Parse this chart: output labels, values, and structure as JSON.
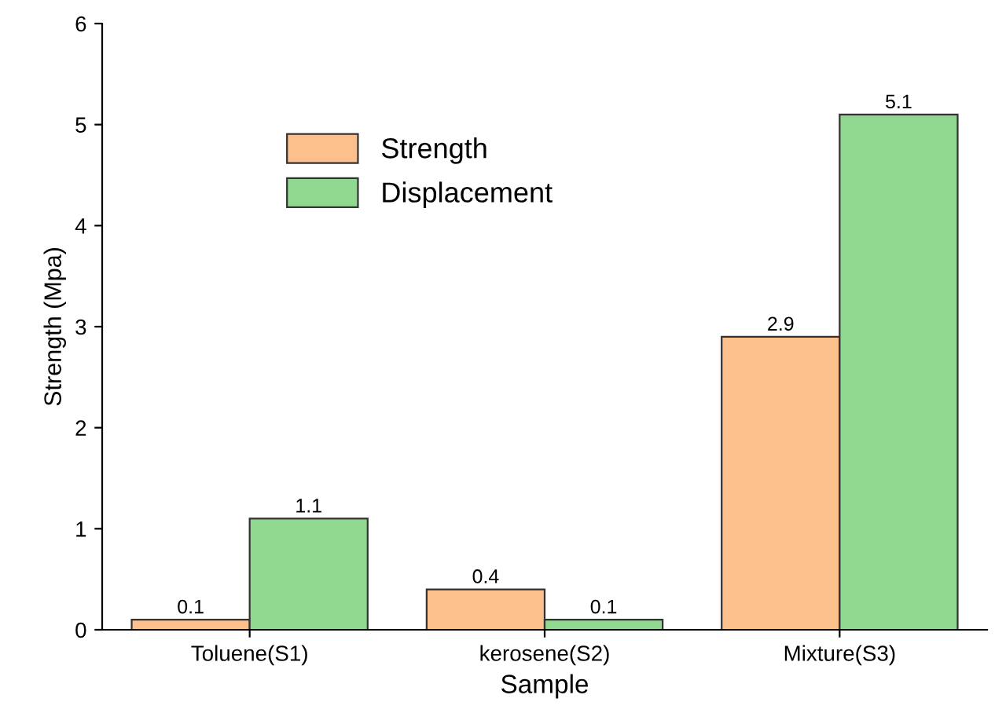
{
  "chart_data": {
    "type": "bar",
    "xlabel": "Sample",
    "ylabel": "Strength (Mpa)",
    "categories": [
      "Toluene(S1)",
      "kerosene(S2)",
      "Mixture(S3)"
    ],
    "series": [
      {
        "name": "Strength",
        "color": "#fcc08c",
        "values": [
          0.1,
          0.4,
          2.9
        ]
      },
      {
        "name": "Displacement",
        "color": "#90d890",
        "values": [
          1.1,
          0.1,
          5.1
        ]
      }
    ],
    "ylim": [
      0,
      6
    ],
    "yticks": [
      0,
      1,
      2,
      3,
      4,
      5,
      6
    ],
    "data_labels": true,
    "legend": "top left",
    "grid": false
  }
}
